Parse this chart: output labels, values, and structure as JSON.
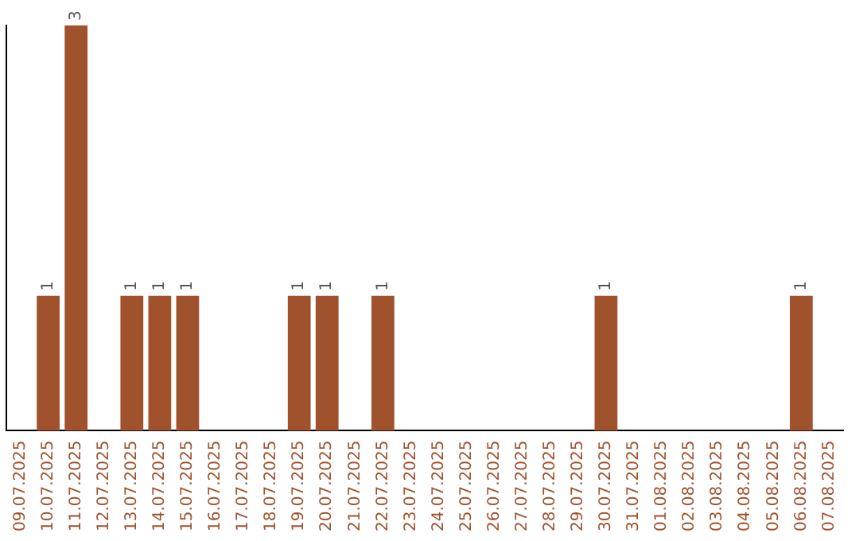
{
  "chart_data": {
    "type": "bar",
    "categories": [
      "09.07.2025",
      "10.07.2025",
      "11.07.2025",
      "12.07.2025",
      "13.07.2025",
      "14.07.2025",
      "15.07.2025",
      "16.07.2025",
      "17.07.2025",
      "18.07.2025",
      "19.07.2025",
      "20.07.2025",
      "21.07.2025",
      "22.07.2025",
      "23.07.2025",
      "24.07.2025",
      "25.07.2025",
      "26.07.2025",
      "27.07.2025",
      "28.07.2025",
      "29.07.2025",
      "30.07.2025",
      "31.07.2025",
      "01.08.2025",
      "02.08.2025",
      "03.08.2025",
      "04.08.2025",
      "05.08.2025",
      "06.08.2025",
      "07.08.2025"
    ],
    "values": [
      0,
      1,
      3,
      0,
      1,
      1,
      1,
      0,
      0,
      0,
      1,
      1,
      0,
      1,
      0,
      0,
      0,
      0,
      0,
      0,
      0,
      1,
      0,
      0,
      0,
      0,
      0,
      0,
      1,
      0
    ],
    "value_labels": [
      null,
      "1",
      "3",
      null,
      "1",
      "1",
      "1",
      null,
      null,
      null,
      "1",
      "1",
      null,
      "1",
      null,
      null,
      null,
      null,
      null,
      null,
      null,
      "1",
      null,
      null,
      null,
      null,
      null,
      null,
      "1",
      null
    ],
    "color": "#a0522d",
    "grid": false,
    "legend": false,
    "tick_labels": "x"
  }
}
